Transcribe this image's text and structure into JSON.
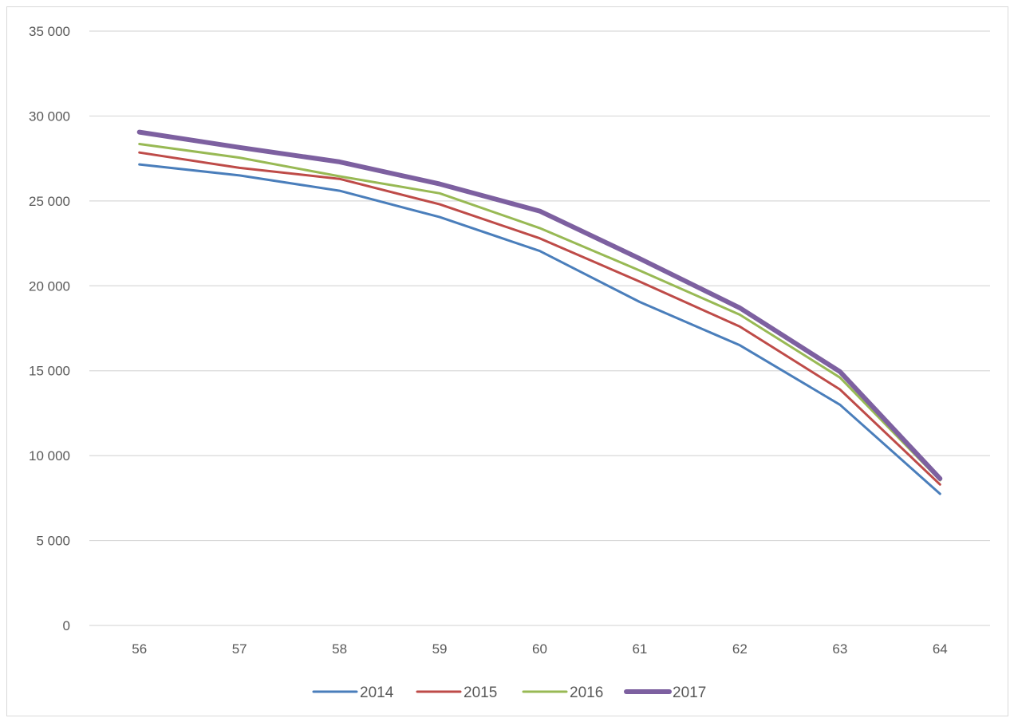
{
  "chart_data": {
    "type": "line",
    "categories": [
      "56",
      "57",
      "58",
      "59",
      "60",
      "61",
      "62",
      "63",
      "64"
    ],
    "y_tick_labels": [
      "0",
      "5 000",
      "10 000",
      "15 000",
      "20 000",
      "25 000",
      "30 000",
      "35 000"
    ],
    "ylim": [
      0,
      35000
    ],
    "grid": true,
    "legend_position": "bottom",
    "series": [
      {
        "name": "2014",
        "color": "#4a7ebb",
        "values": [
          27150,
          26500,
          25600,
          24050,
          22050,
          19050,
          16500,
          13000,
          7750
        ]
      },
      {
        "name": "2015",
        "color": "#be4b48",
        "values": [
          27850,
          26950,
          26300,
          24800,
          22800,
          20250,
          17600,
          13900,
          8300
        ]
      },
      {
        "name": "2016",
        "color": "#98b954",
        "values": [
          28350,
          27550,
          26450,
          25450,
          23400,
          20900,
          18300,
          14600,
          8550
        ]
      },
      {
        "name": "2017",
        "color": "#7d60a0",
        "values": [
          29050,
          28150,
          27300,
          26000,
          24400,
          21600,
          18700,
          14950,
          8650
        ]
      }
    ]
  }
}
